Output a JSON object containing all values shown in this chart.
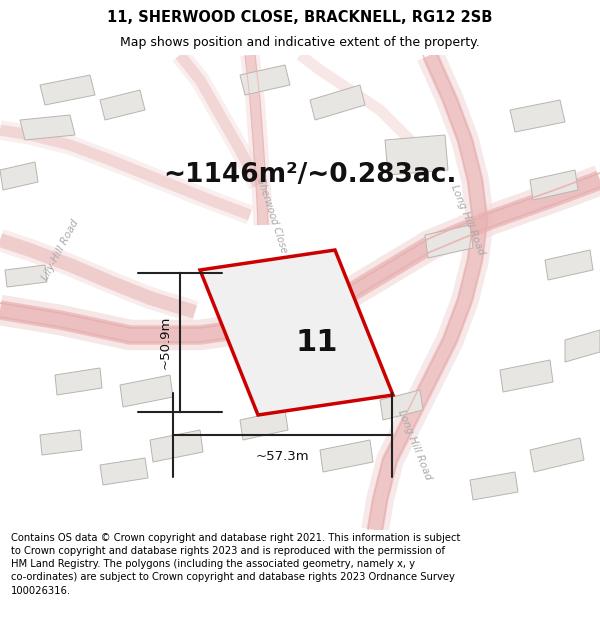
{
  "title_line1": "11, SHERWOOD CLOSE, BRACKNELL, RG12 2SB",
  "title_line2": "Map shows position and indicative extent of the property.",
  "area_text": "~1146m²/~0.283ac.",
  "label_number": "11",
  "dim_height": "~50.9m",
  "dim_width": "~57.3m",
  "footer_text": "Contains OS data © Crown copyright and database right 2021. This information is subject to Crown copyright and database rights 2023 and is reproduced with the permission of HM Land Registry. The polygons (including the associated geometry, namely x, y co-ordinates) are subject to Crown copyright and database rights 2023 Ordnance Survey 100026316.",
  "bg_color": "#ffffff",
  "map_bg": "#f8f7f5",
  "road_outline": "#e8b0b0",
  "road_fill": "#f5e0e0",
  "building_color": "#e8e6e3",
  "building_edge": "#b8b5b0",
  "property_fill": "#f0f0f0",
  "property_edge": "#cc0000",
  "dim_line_color": "#222222",
  "road_label_color": "#aaaaaa",
  "title_color": "#000000",
  "footer_color": "#000000",
  "title_fontsize": 10.5,
  "subtitle_fontsize": 9.0,
  "area_fontsize": 19,
  "number_fontsize": 22,
  "dim_fontsize": 9.5,
  "road_label_fontsize": 7.5,
  "footer_fontsize": 7.2
}
